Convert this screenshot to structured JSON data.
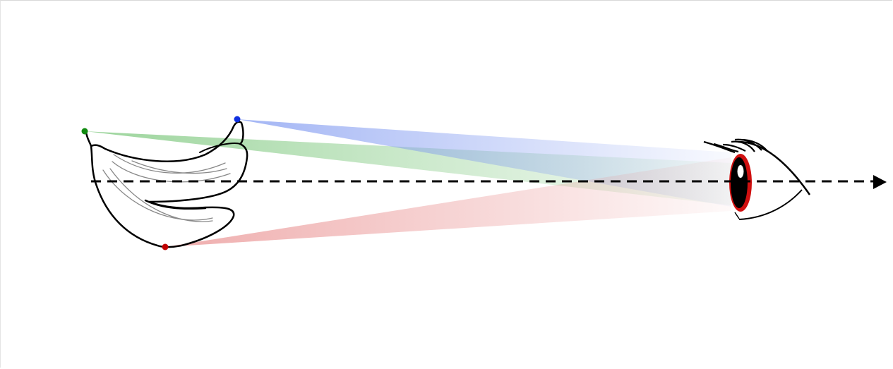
{
  "diagram": {
    "colors": {
      "point_top_left": "#108a10",
      "point_top_right": "#1030e0",
      "point_bottom": "#c00000",
      "beam_green": "#7cc77c",
      "beam_blue": "#7c96f0",
      "beam_red": "#e88a8a",
      "iris": "#d01010",
      "outline": "#000000"
    },
    "icons": [
      "banana-bunch-drawing",
      "eye-icon",
      "arrow-right-icon"
    ]
  }
}
